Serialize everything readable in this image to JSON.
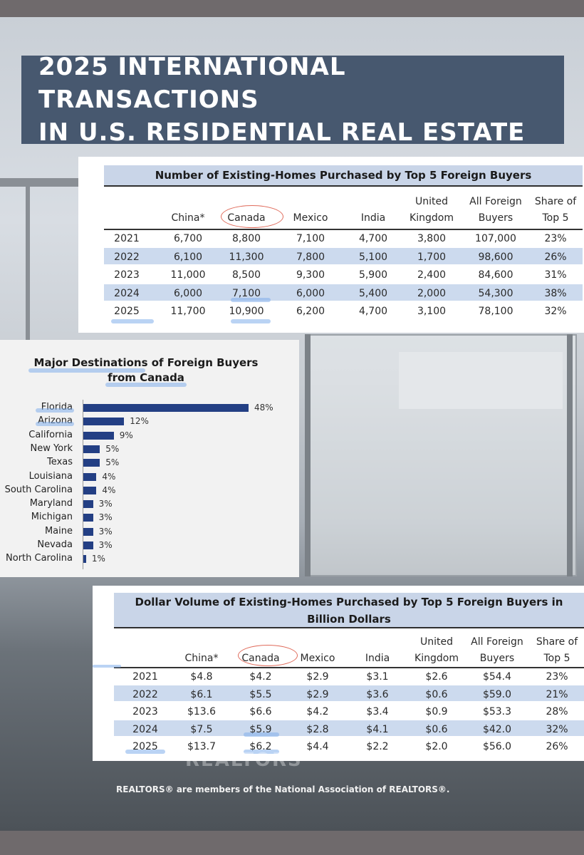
{
  "title": {
    "line1": "2025 INTERNATIONAL TRANSACTIONS",
    "line2": "IN U.S. RESIDENTIAL REAL ESTATE"
  },
  "footer": "REALTORS® are members of the National Association of REALTORS®.",
  "ghost_text": "REALTORS",
  "colors": {
    "title_bg": "#47586f",
    "band": "#ccdaee",
    "bar": "#233f84",
    "circle": "#e06c5c"
  },
  "chart_data": [
    {
      "type": "table",
      "title": "Number of Existing-Homes Purchased by Top 5 Foreign Buyers",
      "columns": [
        "",
        "China*",
        "Canada",
        "Mexico",
        "India",
        "United Kingdom",
        "All Foreign Buyers",
        "Share of Top 5"
      ],
      "header_lines": [
        [
          "",
          ""
        ],
        [
          "",
          "China*"
        ],
        [
          "",
          "Canada"
        ],
        [
          "",
          "Mexico"
        ],
        [
          "",
          "India"
        ],
        [
          "United",
          "Kingdom"
        ],
        [
          "All Foreign",
          "Buyers"
        ],
        [
          "Share of",
          "Top 5"
        ]
      ],
      "rows": [
        [
          "2021",
          "6,700",
          "8,800",
          "7,100",
          "4,700",
          "3,800",
          "107,000",
          "23%"
        ],
        [
          "2022",
          "6,100",
          "11,300",
          "7,800",
          "5,100",
          "1,700",
          "98,600",
          "26%"
        ],
        [
          "2023",
          "11,000",
          "8,500",
          "9,300",
          "5,900",
          "2,400",
          "84,600",
          "31%"
        ],
        [
          "2024",
          "6,000",
          "7,100",
          "6,000",
          "5,400",
          "2,000",
          "54,300",
          "38%"
        ],
        [
          "2025",
          "11,700",
          "10,900",
          "6,200",
          "4,700",
          "3,100",
          "78,100",
          "32%"
        ]
      ]
    },
    {
      "type": "bar",
      "orientation": "horizontal",
      "title_lines": [
        "Major Destinations of Foreign Buyers",
        "from Canada"
      ],
      "categories": [
        "Florida",
        "Arizona",
        "California",
        "New York",
        "Texas",
        "Louisiana",
        "South Carolina",
        "Maryland",
        "Michigan",
        "Maine",
        "Nevada",
        "North Carolina"
      ],
      "values": [
        48,
        12,
        9,
        5,
        5,
        4,
        4,
        3,
        3,
        3,
        3,
        1
      ],
      "value_labels": [
        "48%",
        "12%",
        "9%",
        "5%",
        "5%",
        "4%",
        "4%",
        "3%",
        "3%",
        "3%",
        "3%",
        "1%"
      ],
      "xlim": [
        0,
        50
      ]
    },
    {
      "type": "table",
      "title_lines": [
        "Dollar Volume of Existing-Homes Purchased by Top 5 Foreign Buyers in",
        "Billion Dollars"
      ],
      "columns": [
        "",
        "China*",
        "Canada",
        "Mexico",
        "India",
        "United Kingdom",
        "All Foreign Buyers",
        "Share of Top 5"
      ],
      "header_lines": [
        [
          "",
          ""
        ],
        [
          "",
          "China*"
        ],
        [
          "",
          "Canada"
        ],
        [
          "",
          "Mexico"
        ],
        [
          "",
          "India"
        ],
        [
          "United",
          "Kingdom"
        ],
        [
          "All Foreign",
          "Buyers"
        ],
        [
          "Share of",
          "Top 5"
        ]
      ],
      "rows": [
        [
          "2021",
          "$4.8",
          "$4.2",
          "$2.9",
          "$3.1",
          "$2.6",
          "$54.4",
          "23%"
        ],
        [
          "2022",
          "$6.1",
          "$5.5",
          "$2.9",
          "$3.6",
          "$0.6",
          "$59.0",
          "21%"
        ],
        [
          "2023",
          "$13.6",
          "$6.6",
          "$4.2",
          "$3.4",
          "$0.9",
          "$53.3",
          "28%"
        ],
        [
          "2024",
          "$7.5",
          "$5.9",
          "$2.8",
          "$4.1",
          "$0.6",
          "$42.0",
          "32%"
        ],
        [
          "2025",
          "$13.7",
          "$6.2",
          "$4.4",
          "$2.2",
          "$2.0",
          "$56.0",
          "26%"
        ]
      ]
    }
  ]
}
